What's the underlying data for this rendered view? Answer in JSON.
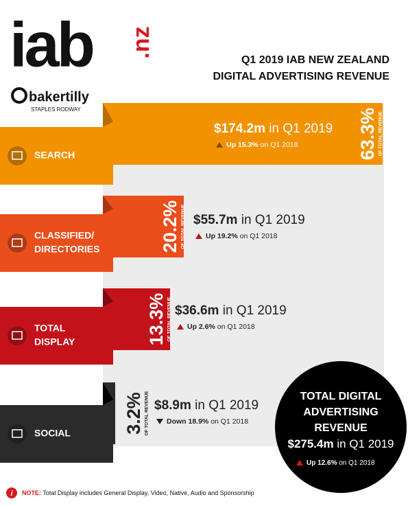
{
  "header": {
    "logo": "iab",
    "logo_suffix": ".nz",
    "title_lines": [
      "Q1 2019 IAB NEW ZEALAND",
      "DIGITAL ADVERTISING REVENUE"
    ],
    "sponsor": "bakertilly",
    "sponsor_sub": "STAPLES RODWAY"
  },
  "segments": [
    {
      "label_lines": [
        "SEARCH"
      ],
      "share": "63.3%",
      "share_caption": "OF TOTAL REVENUE",
      "amount": "$174.2m",
      "period": " in Q1 2019",
      "change": "Up 15.3%",
      "change_period": " on Q1 2018"
    },
    {
      "label_lines": [
        "CLASSIFIED/",
        "DIRECTORIES"
      ],
      "share": "20.2%",
      "share_caption": "OF TOTAL REVENUE",
      "amount": "$55.7m",
      "period": " in Q1 2019",
      "change": "Up 19.2%",
      "change_period": " on Q1 2018"
    },
    {
      "label_lines": [
        "TOTAL",
        "DISPLAY"
      ],
      "share": "13.3%",
      "share_caption": "OF TOTAL REVENUE",
      "amount": "$36.6m",
      "period": " in Q1 2019",
      "change": "Up 2.6%",
      "change_period": " on Q1 2018"
    },
    {
      "label_lines": [
        "SOCIAL"
      ],
      "share": "3.2%",
      "share_caption": "OF TOTAL REVENUE",
      "amount": "$8.9m",
      "period": " in Q1 2019",
      "change": "Down 18.9%",
      "change_period": " on Q1 2018"
    }
  ],
  "total": {
    "title_lines": [
      "TOTAL DIGITAL",
      "ADVERTISING",
      "REVENUE"
    ],
    "amount": "$275.4m",
    "period": " in Q1 2019",
    "change": "Up 12.6%",
    "change_period": " on Q1 2018"
  },
  "note": {
    "label": "NOTE:",
    "text": " Total Display includes General Display, Video, Native, Audio and Sponsorship"
  }
}
